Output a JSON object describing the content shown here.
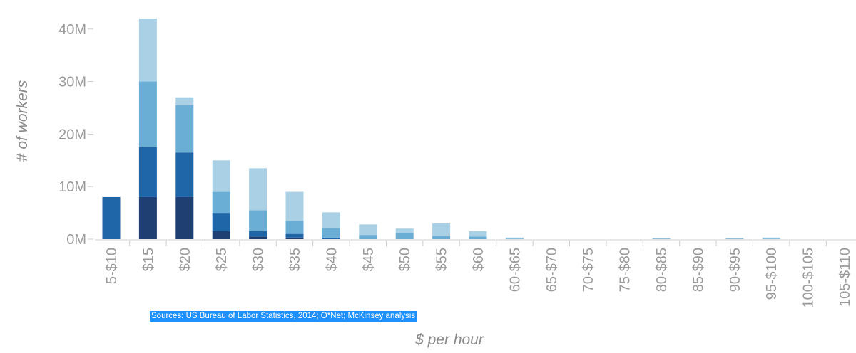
{
  "source_note": "Sources: US Bureau of Labor Statistics, 2014; O*Net; McKinsey analysis",
  "colors": {
    "segments": [
      "#1f3f73",
      "#1f66a8",
      "#6aaed6",
      "#a9d0e4"
    ],
    "axis": "#cfcfcf",
    "text": "#9a9a9a"
  },
  "chart_data": {
    "type": "bar",
    "stacked": true,
    "xlabel": "$ per hour",
    "ylabel": "# of workers",
    "ylim": [
      0,
      42
    ],
    "yticks": [
      {
        "value": 0,
        "label": "0M"
      },
      {
        "value": 10,
        "label": "10M"
      },
      {
        "value": 20,
        "label": "20M"
      },
      {
        "value": 30,
        "label": "30M"
      },
      {
        "value": 40,
        "label": "40M"
      }
    ],
    "categories": [
      "5-$10",
      "$15",
      "$20",
      "$25",
      "$30",
      "$35",
      "$40",
      "$45",
      "$50",
      "$55",
      "$60",
      "60-$65",
      "65-$70",
      "70-$75",
      "75-$80",
      "80-$85",
      "85-$90",
      "90-$95",
      "95-$100",
      "100-$105",
      "105-$110"
    ],
    "series": [
      {
        "values": [
          0,
          8,
          8,
          1.5,
          0.5,
          0.3,
          0,
          0,
          0,
          0,
          0,
          0,
          0,
          0,
          0,
          0,
          0,
          0,
          0,
          0,
          0
        ]
      },
      {
        "values": [
          8,
          9.5,
          8.5,
          3.5,
          1,
          0.7,
          0.3,
          0,
          0,
          0,
          0,
          0,
          0,
          0,
          0,
          0,
          0,
          0,
          0,
          0,
          0
        ]
      },
      {
        "values": [
          0,
          12.5,
          9,
          4,
          4,
          2.5,
          1.8,
          0.8,
          1.2,
          0.6,
          0.5,
          0.1,
          0,
          0,
          0,
          0.1,
          0,
          0.1,
          0.1,
          0,
          0
        ]
      },
      {
        "values": [
          0,
          12,
          1.5,
          6,
          8,
          5.5,
          3,
          2,
          0.8,
          2.4,
          1,
          0.2,
          0,
          0,
          0,
          0.1,
          0,
          0.1,
          0.2,
          0,
          0
        ]
      }
    ]
  }
}
